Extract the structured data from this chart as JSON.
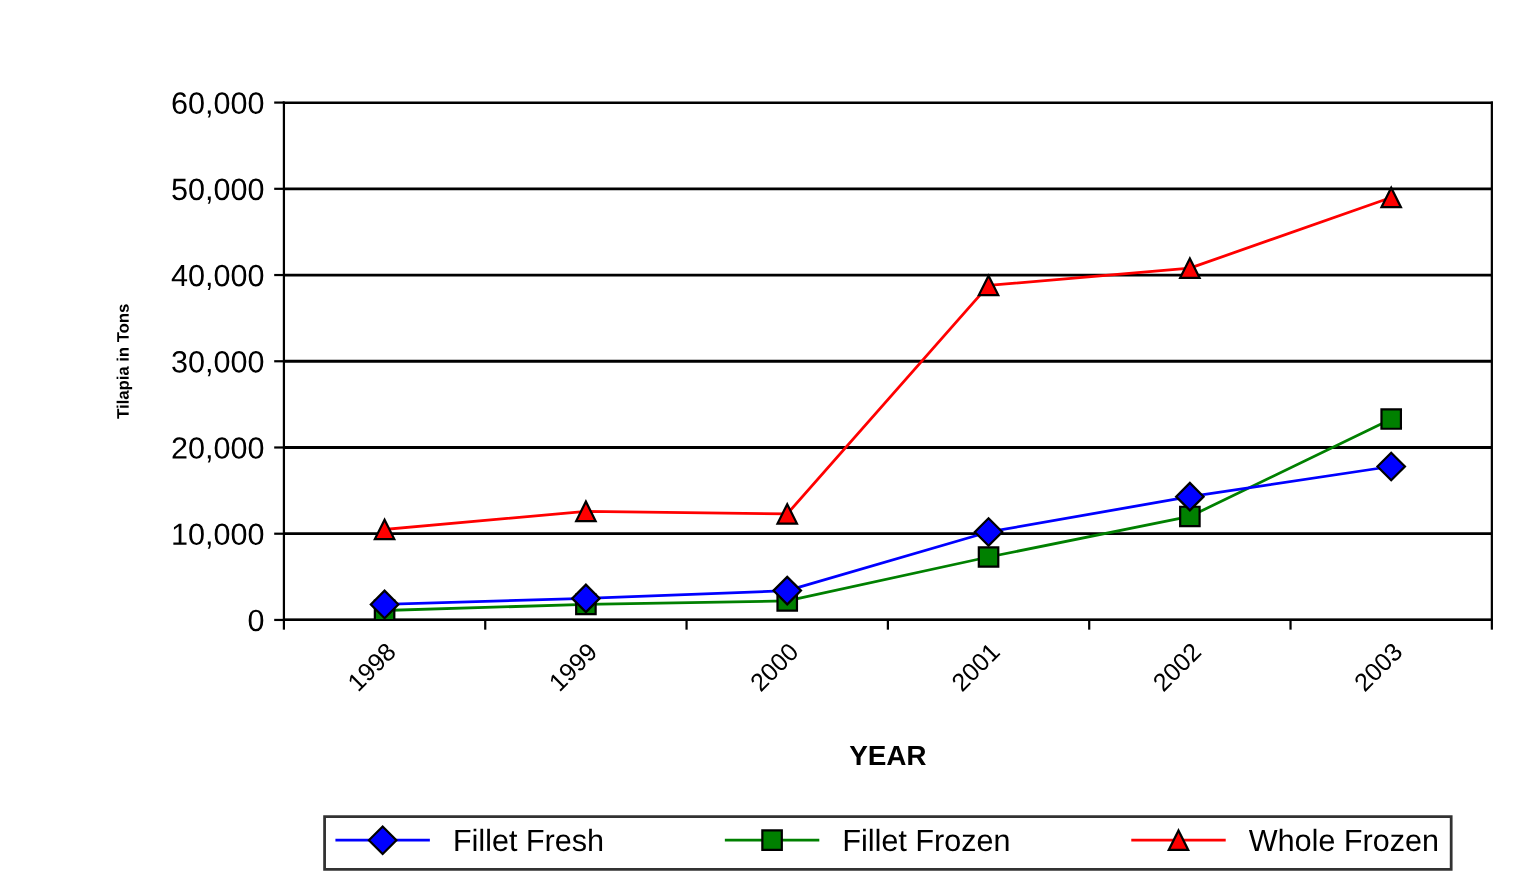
{
  "chart_data": {
    "type": "line",
    "xlabel": "YEAR",
    "ylabel": "Tilapia in Tons",
    "categories": [
      "1998",
      "1999",
      "2000",
      "2001",
      "2002",
      "2003"
    ],
    "series": [
      {
        "name": "Fillet Fresh",
        "color": "#0000ff",
        "marker": "diamond",
        "values": [
          1800,
          2500,
          3400,
          10200,
          14300,
          17800
        ]
      },
      {
        "name": "Fillet Frozen",
        "color": "#008000",
        "marker": "square",
        "values": [
          1100,
          1800,
          2200,
          7300,
          12000,
          23300
        ]
      },
      {
        "name": "Whole Frozen",
        "color": "#ff0000",
        "marker": "triangle",
        "values": [
          10500,
          12600,
          12300,
          38800,
          40800,
          49000
        ]
      }
    ],
    "ylim": [
      0,
      60000
    ],
    "yticks": [
      {
        "value": 0,
        "label": "0"
      },
      {
        "value": 10000,
        "label": "10,000"
      },
      {
        "value": 20000,
        "label": "20,000"
      },
      {
        "value": 30000,
        "label": "30,000"
      },
      {
        "value": 40000,
        "label": "40,000"
      },
      {
        "value": 50000,
        "label": "50,000"
      },
      {
        "value": 60000,
        "label": "60,000"
      }
    ],
    "grid": "y",
    "legend": "bottom",
    "line_style": "solid"
  }
}
